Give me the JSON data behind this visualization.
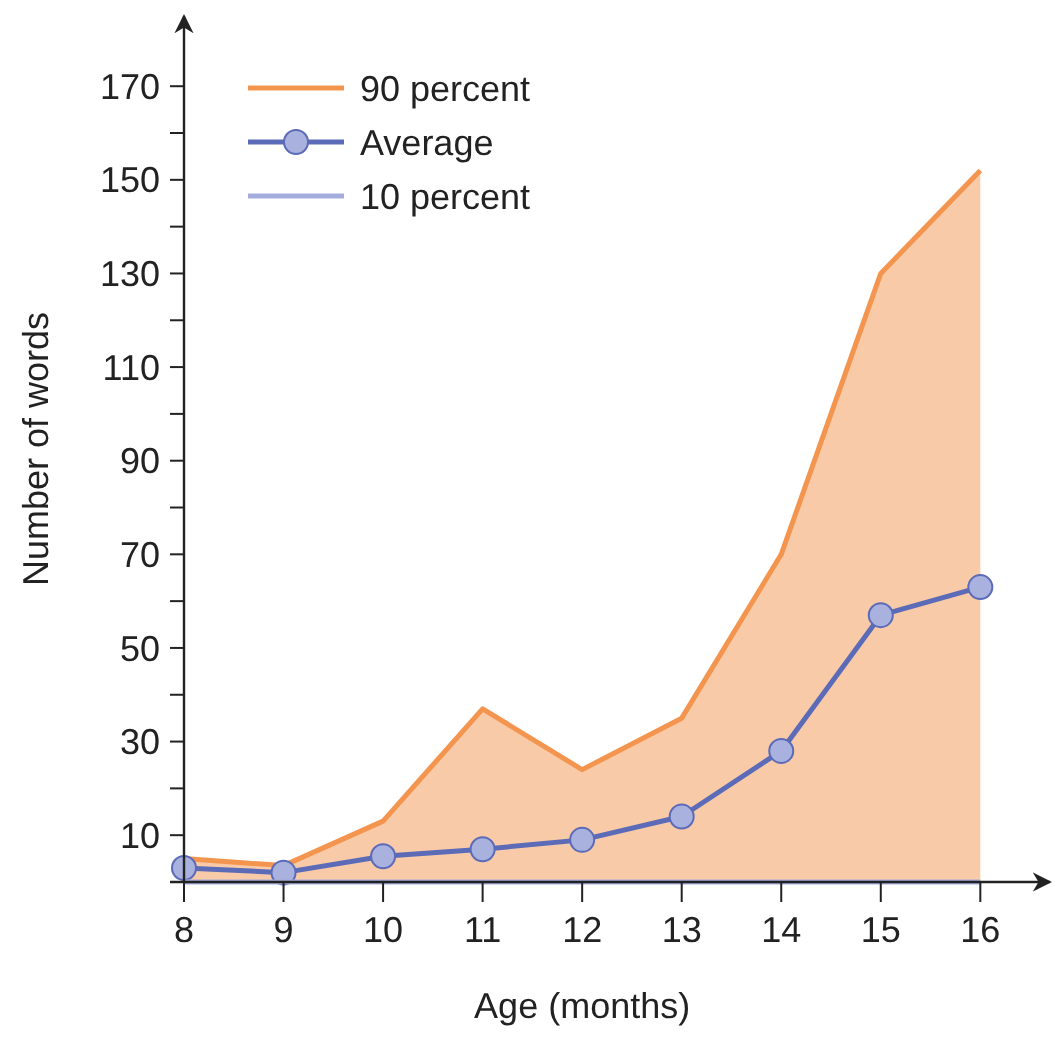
{
  "chart_data": {
    "type": "line",
    "xlabel": "Age (months)",
    "ylabel": "Number of words",
    "x": [
      8,
      9,
      10,
      11,
      12,
      13,
      14,
      15,
      16
    ],
    "series": [
      {
        "name": "90 percent",
        "type": "area",
        "color": "#f4954f",
        "values": [
          5,
          3.5,
          13,
          37,
          24,
          35,
          70,
          130,
          152
        ]
      },
      {
        "name": "Average",
        "color": "#5b6bb8",
        "marker": "circle",
        "values": [
          3,
          2,
          5.5,
          7,
          9,
          14,
          28,
          57,
          63
        ]
      },
      {
        "name": "10 percent",
        "color": "#a3acdc",
        "values": [
          0,
          0,
          0,
          0,
          0,
          0,
          0,
          0,
          0
        ]
      }
    ],
    "xlim": [
      8,
      16.7
    ],
    "ylim": [
      0,
      185
    ],
    "xticks": [
      8,
      9,
      10,
      11,
      12,
      13,
      14,
      15,
      16
    ],
    "yticks": [
      10,
      {
        "value": 20,
        "label": null
      },
      30,
      {
        "value": 40,
        "label": null
      },
      50,
      {
        "value": 60,
        "label": null
      },
      70,
      {
        "value": 80,
        "label": null
      },
      90,
      {
        "value": 100,
        "label": null
      },
      110,
      {
        "value": 120,
        "label": null
      },
      130,
      {
        "value": 140,
        "label": null
      },
      150,
      {
        "value": 160,
        "label": null
      },
      170
    ],
    "grid": false,
    "legend": "top left"
  }
}
